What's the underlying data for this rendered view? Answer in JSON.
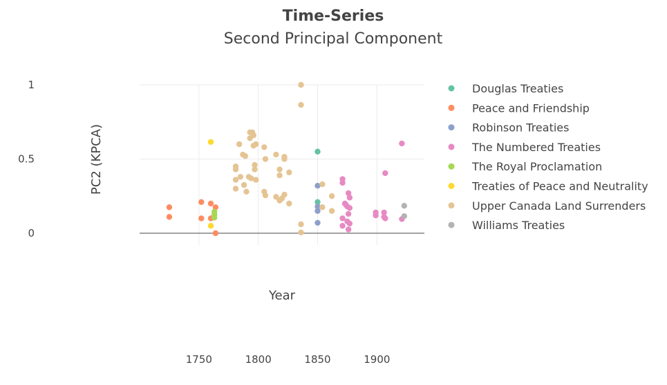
{
  "chart_data": {
    "type": "scatter",
    "title": "Time-Series",
    "subtitle": "Second Principal Component",
    "xlabel": "Year",
    "ylabel": "PC2 (KPCA)",
    "xlim": [
      1700,
      1940
    ],
    "ylim": [
      -0.08,
      1.0
    ],
    "x_ticks": [
      "1750",
      "1800",
      "1850",
      "1900"
    ],
    "x_tick_values": [
      1750,
      1800,
      1850,
      1900
    ],
    "y_ticks": [
      "0",
      "0.5",
      "1"
    ],
    "y_tick_values": [
      0,
      0.5,
      1
    ],
    "grid": true,
    "legend_position": "right",
    "series": [
      {
        "name": "Douglas Treaties",
        "color": "#66c2a5",
        "points": [
          [
            1850,
            0.55
          ],
          [
            1850,
            0.21
          ]
        ]
      },
      {
        "name": "Peace and Friendship",
        "color": "#fc8d62",
        "points": [
          [
            1725,
            0.175
          ],
          [
            1725,
            0.11
          ],
          [
            1752,
            0.21
          ],
          [
            1752,
            0.1
          ],
          [
            1760,
            0.2
          ],
          [
            1760,
            0.1
          ],
          [
            1764,
            0.175
          ],
          [
            1764,
            0.0
          ]
        ]
      },
      {
        "name": "Robinson Treaties",
        "color": "#8da0cb",
        "points": [
          [
            1850,
            0.32
          ],
          [
            1850,
            0.18
          ],
          [
            1850,
            0.15
          ],
          [
            1850,
            0.07
          ]
        ]
      },
      {
        "name": "The Numbered Treaties",
        "color": "#e78ac3",
        "points": [
          [
            1871,
            0.365
          ],
          [
            1871,
            0.34
          ],
          [
            1873,
            0.2
          ],
          [
            1874,
            0.19
          ],
          [
            1875,
            0.18
          ],
          [
            1876,
            0.27
          ],
          [
            1877,
            0.24
          ],
          [
            1877,
            0.17
          ],
          [
            1876,
            0.13
          ],
          [
            1875,
            0.08
          ],
          [
            1877,
            0.065
          ],
          [
            1871,
            0.1
          ],
          [
            1871,
            0.05
          ],
          [
            1876,
            0.025
          ],
          [
            1899,
            0.14
          ],
          [
            1899,
            0.12
          ],
          [
            1906,
            0.14
          ],
          [
            1906,
            0.11
          ],
          [
            1907,
            0.1
          ],
          [
            1907,
            0.405
          ],
          [
            1921,
            0.605
          ],
          [
            1921,
            0.095
          ]
        ]
      },
      {
        "name": "The Royal Proclamation",
        "color": "#a6d854",
        "points": [
          [
            1763,
            0.145
          ],
          [
            1763,
            0.125
          ],
          [
            1763,
            0.105
          ]
        ]
      },
      {
        "name": "Treaties of Peace and Neutrality",
        "color": "#ffd92f",
        "points": [
          [
            1760,
            0.615
          ],
          [
            1760,
            0.05
          ]
        ]
      },
      {
        "name": "Upper Canada Land Surrenders",
        "color": "#e5c494",
        "points": [
          [
            1781,
            0.45
          ],
          [
            1781,
            0.43
          ],
          [
            1781,
            0.36
          ],
          [
            1781,
            0.3
          ],
          [
            1784,
            0.6
          ],
          [
            1785,
            0.38
          ],
          [
            1787,
            0.53
          ],
          [
            1788,
            0.325
          ],
          [
            1789,
            0.52
          ],
          [
            1790,
            0.28
          ],
          [
            1792,
            0.38
          ],
          [
            1793,
            0.68
          ],
          [
            1795,
            0.68
          ],
          [
            1793,
            0.64
          ],
          [
            1794,
            0.37
          ],
          [
            1796,
            0.66
          ],
          [
            1796,
            0.59
          ],
          [
            1797,
            0.46
          ],
          [
            1797,
            0.43
          ],
          [
            1798,
            0.36
          ],
          [
            1798,
            0.6
          ],
          [
            1805,
            0.58
          ],
          [
            1806,
            0.5
          ],
          [
            1805,
            0.28
          ],
          [
            1806,
            0.255
          ],
          [
            1815,
            0.53
          ],
          [
            1815,
            0.245
          ],
          [
            1818,
            0.43
          ],
          [
            1818,
            0.39
          ],
          [
            1818,
            0.22
          ],
          [
            1820,
            0.235
          ],
          [
            1822,
            0.515
          ],
          [
            1822,
            0.5
          ],
          [
            1822,
            0.26
          ],
          [
            1826,
            0.41
          ],
          [
            1826,
            0.2
          ],
          [
            1836,
            1.0
          ],
          [
            1836,
            0.865
          ],
          [
            1836,
            0.06
          ],
          [
            1836,
            0.005
          ],
          [
            1854,
            0.33
          ],
          [
            1854,
            0.175
          ],
          [
            1862,
            0.25
          ],
          [
            1862,
            0.15
          ]
        ]
      },
      {
        "name": "Williams Treaties",
        "color": "#b3b3b3",
        "points": [
          [
            1923,
            0.185
          ],
          [
            1923,
            0.115
          ]
        ]
      }
    ]
  }
}
